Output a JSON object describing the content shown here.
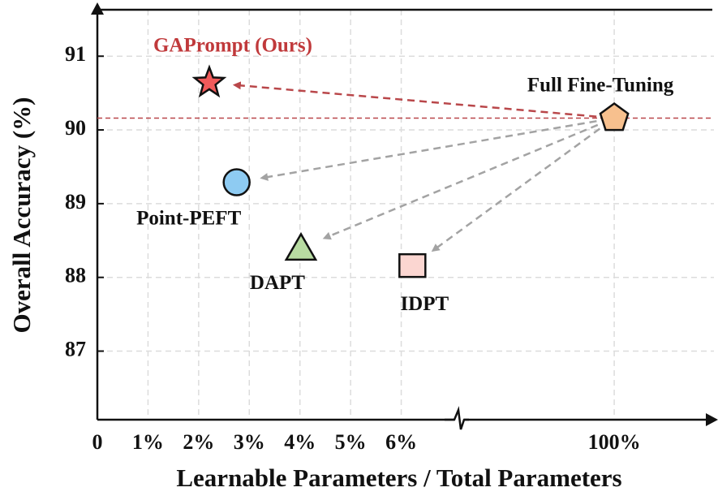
{
  "chart_data": {
    "type": "scatter",
    "x_label": "Learnable Parameters / Total Parameters",
    "y_label": "Overall Accuracy (%)",
    "xlim": [
      0,
      102.7
    ],
    "x_break": [
      7,
      96
    ],
    "ylim": [
      86.07,
      91.63
    ],
    "xticks": [
      0,
      {
        "value": 1,
        "label": "1%"
      },
      {
        "value": 2,
        "label": "2%"
      },
      {
        "value": 3,
        "label": "3%"
      },
      {
        "value": 4,
        "label": "4%"
      },
      {
        "value": 5,
        "label": "5%"
      },
      {
        "value": 6,
        "label": "6%"
      },
      {
        "value": 100,
        "label": "100%"
      }
    ],
    "yticks": [
      87,
      88,
      89,
      90,
      91
    ],
    "grid": true,
    "points": [
      {
        "name": "GAPrompt (Ours)",
        "x": 2.21,
        "y": 90.64,
        "color": "#f05a5a",
        "marker": "star"
      },
      {
        "name": "Point-PEFT",
        "x": 2.75,
        "y": 89.29,
        "color": "#8ecbf2",
        "marker": "circle"
      },
      {
        "name": "DAPT",
        "x": 4.02,
        "y": 88.4,
        "color": "#b8dca2",
        "marker": "triangle"
      },
      {
        "name": "IDPT",
        "x": 6.22,
        "y": 88.16,
        "color": "#fbd6d1",
        "marker": "square"
      },
      {
        "name": "Full Fine-Tuning",
        "x": 100,
        "y": 90.16,
        "color": "#f7c08e",
        "marker": "pentagon"
      }
    ]
  }
}
